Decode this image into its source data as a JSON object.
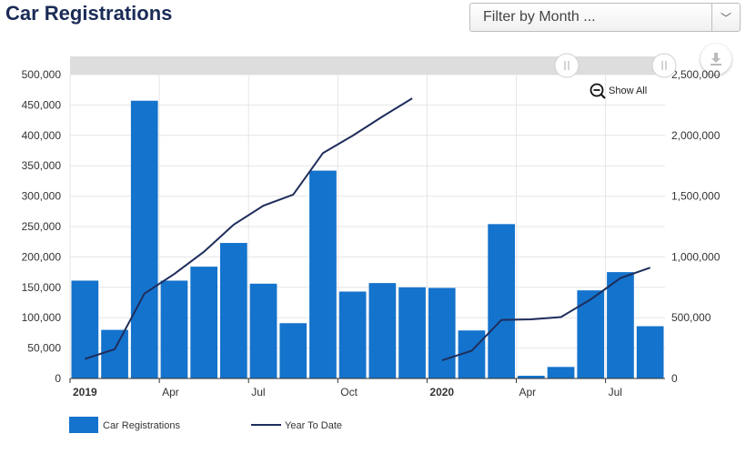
{
  "page": {
    "title": "Car Registrations",
    "filter": {
      "placeholder": "Filter by Month ...",
      "arrow": "﹀"
    },
    "zoom": {
      "label": "Show All"
    },
    "download": {
      "icon": "download-icon"
    }
  },
  "chart_data": {
    "type": "bar",
    "categories": [
      "2019-01",
      "2019-02",
      "2019-03",
      "2019-04",
      "2019-05",
      "2019-06",
      "2019-07",
      "2019-08",
      "2019-09",
      "2019-10",
      "2019-11",
      "2019-12",
      "2020-01",
      "2020-02",
      "2020-03",
      "2020-04",
      "2020-05",
      "2020-06",
      "2020-07",
      "2020-08"
    ],
    "x_tick_labels": [
      {
        "category": "2019-01",
        "label": "2019",
        "bold": true
      },
      {
        "category": "2019-04",
        "label": "Apr",
        "bold": false
      },
      {
        "category": "2019-07",
        "label": "Jul",
        "bold": false
      },
      {
        "category": "2019-10",
        "label": "Oct",
        "bold": false
      },
      {
        "category": "2020-01",
        "label": "2020",
        "bold": true
      },
      {
        "category": "2020-04",
        "label": "Apr",
        "bold": false
      },
      {
        "category": "2020-07",
        "label": "Jul",
        "bold": false
      }
    ],
    "series": [
      {
        "name": "Car Registrations",
        "type": "bar",
        "axis": "left",
        "color": "#1473cc",
        "values": [
          161000,
          80000,
          457000,
          161000,
          184000,
          223000,
          156000,
          91000,
          342000,
          143000,
          157000,
          150000,
          149000,
          79000,
          254000,
          4500,
          19000,
          145000,
          175000,
          86000
        ]
      },
      {
        "name": "Year To Date",
        "type": "line",
        "axis": "right",
        "color": "#1e2d5c",
        "values": [
          161000,
          241000,
          698000,
          859000,
          1043000,
          1266000,
          1422000,
          1513000,
          1855000,
          1998000,
          2155000,
          2305000,
          149000,
          228000,
          482000,
          486500,
          505500,
          650500,
          825500,
          911500
        ]
      }
    ],
    "y_left": {
      "min": 0,
      "max": 500000,
      "ticks": [
        0,
        50000,
        100000,
        150000,
        200000,
        250000,
        300000,
        350000,
        400000,
        450000,
        500000
      ],
      "tick_labels": [
        "0",
        "50,000",
        "100,000",
        "150,000",
        "200,000",
        "250,000",
        "300,000",
        "350,000",
        "400,000",
        "450,000",
        "500,000"
      ]
    },
    "y_right": {
      "min": 0,
      "max": 2500000,
      "ticks": [
        0,
        500000,
        1000000,
        1500000,
        2000000,
        2500000
      ],
      "tick_labels": [
        "0",
        "500,000",
        "1,000,000",
        "1,500,000",
        "2,000,000",
        "2,500,000"
      ]
    },
    "grid": true,
    "legend": "bottom-left"
  }
}
